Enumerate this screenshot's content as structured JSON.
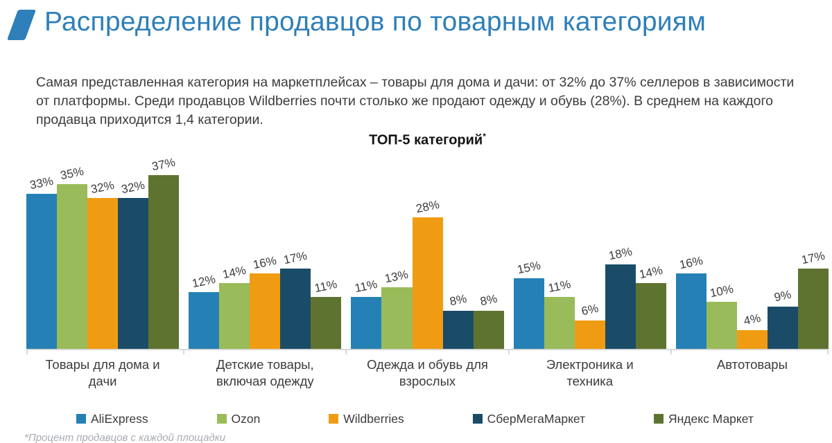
{
  "header": {
    "title": "Распределение продавцов по товарным категориям",
    "accent_color": "#2e7fba"
  },
  "intro": {
    "text": "Самая представленная категория на маркетплейсах – товары для дома и дачи: от 32% до 37% селлеров в зависимости от платформы. Среди продавцов Wildberries почти столько же продают одежду и обувь (28%). В среднем на каждого продавца приходится 1,4 категории."
  },
  "chart_data": {
    "type": "bar",
    "title": "ТОП-5 категорий",
    "title_footnote_marker": "*",
    "categories": [
      "Товары для дома и дачи",
      "Детские товары, включая одежду",
      "Одежда и обувь для взрослых",
      "Электроника и техника",
      "Автотовары"
    ],
    "series": [
      {
        "name": "AliExpress",
        "color": "#2581b5",
        "values": [
          33,
          12,
          11,
          15,
          16
        ]
      },
      {
        "name": "Ozon",
        "color": "#9abb59",
        "values": [
          35,
          14,
          13,
          11,
          10
        ]
      },
      {
        "name": "Wildberries",
        "color": "#f09c13",
        "values": [
          32,
          16,
          28,
          6,
          4
        ]
      },
      {
        "name": "СберМегаМаркет",
        "color": "#1a4c68",
        "values": [
          32,
          17,
          8,
          18,
          9
        ]
      },
      {
        "name": "Яндекс Маркет",
        "color": "#5e7330",
        "values": [
          37,
          11,
          8,
          14,
          17
        ]
      }
    ],
    "value_suffix": "%",
    "ylim": [
      0,
      38
    ],
    "xlabel": "",
    "ylabel": "",
    "grid": false,
    "legend_position": "bottom",
    "data_labels": true
  },
  "footnote": {
    "text": "*Процент продавцов с каждой площадки"
  }
}
